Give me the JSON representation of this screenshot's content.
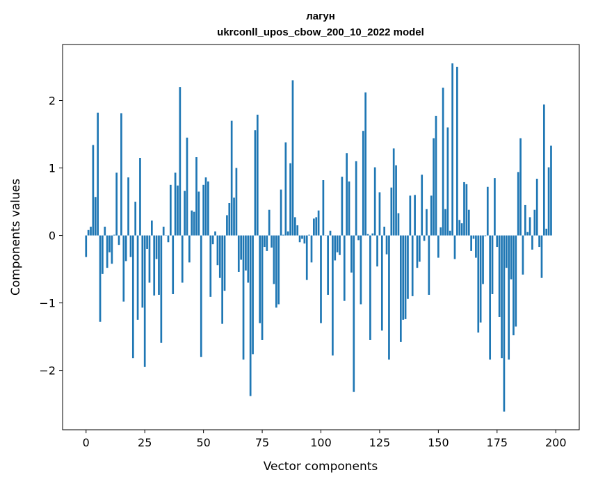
{
  "chart_data": {
    "type": "bar",
    "title": "лагун",
    "subtitle": "ukrconll_upos_cbow_200_10_2022 model",
    "xlabel": "Vector components",
    "ylabel": "Components values",
    "xlim": [
      -10,
      210
    ],
    "ylim": [
      -2.88,
      2.83
    ],
    "xticks": [
      0,
      25,
      50,
      75,
      100,
      125,
      150,
      175,
      200
    ],
    "yticks": [
      -2,
      -1,
      0,
      1,
      2
    ],
    "ytick_labels": [
      "−2",
      "−1",
      "0",
      "1",
      "2"
    ],
    "color": "#1f77b4",
    "grid": false,
    "values": [
      -0.32,
      0.08,
      0.13,
      1.34,
      0.57,
      1.82,
      -1.28,
      -0.57,
      0.13,
      -0.48,
      -0.25,
      -0.42,
      0.01,
      0.93,
      -0.14,
      1.81,
      -0.98,
      -0.38,
      0.86,
      -0.32,
      -1.82,
      0.5,
      -1.25,
      1.15,
      -1.07,
      -1.95,
      -0.2,
      -0.7,
      0.22,
      -0.89,
      -0.35,
      -0.88,
      -1.59,
      0.13,
      0.0,
      -0.1,
      0.75,
      -0.87,
      0.93,
      0.74,
      2.2,
      -0.7,
      0.66,
      1.45,
      -0.4,
      0.37,
      0.35,
      1.16,
      0.65,
      -1.8,
      0.75,
      0.86,
      0.8,
      -0.91,
      -0.13,
      0.06,
      -0.44,
      -0.63,
      -1.31,
      -0.82,
      0.3,
      0.48,
      1.7,
      0.56,
      1.0,
      -0.54,
      -0.36,
      -1.84,
      -0.52,
      -0.7,
      -2.38,
      -1.76,
      1.56,
      1.79,
      -1.3,
      -1.55,
      -0.17,
      -0.23,
      0.38,
      -0.18,
      -0.72,
      -1.07,
      -1.02,
      0.68,
      0.01,
      1.38,
      0.06,
      1.07,
      2.3,
      0.27,
      0.15,
      -0.1,
      -0.05,
      -0.12,
      -0.66,
      0.01,
      -0.4,
      0.25,
      0.27,
      0.37,
      -1.3,
      0.82,
      0.0,
      -0.88,
      0.07,
      -1.78,
      -0.37,
      -0.25,
      -0.29,
      0.87,
      -0.97,
      1.22,
      0.8,
      -0.55,
      -2.32,
      1.1,
      -0.07,
      -1.02,
      1.55,
      2.12,
      0.02,
      -1.55,
      0.03,
      1.01,
      -0.46,
      0.64,
      -1.41,
      0.13,
      -0.28,
      -1.84,
      0.71,
      1.29,
      1.04,
      0.33,
      -1.58,
      -1.25,
      -1.24,
      -0.94,
      0.59,
      -0.9,
      0.6,
      -0.48,
      -0.39,
      0.9,
      -0.08,
      0.39,
      -0.88,
      0.59,
      1.44,
      1.77,
      -0.33,
      0.12,
      2.19,
      0.39,
      1.6,
      0.07,
      2.55,
      -0.35,
      2.5,
      0.23,
      0.18,
      0.79,
      0.76,
      0.38,
      -0.23,
      -0.05,
      -0.33,
      -1.44,
      -1.29,
      -0.72,
      -0.01,
      0.72,
      -1.84,
      -0.87,
      0.85,
      -0.17,
      -1.21,
      -1.82,
      -2.61,
      -0.48,
      -1.84,
      -0.65,
      -1.48,
      -1.35,
      0.94,
      1.44,
      -0.58,
      0.45,
      0.05,
      0.27,
      -0.21,
      0.38,
      0.84,
      -0.17,
      -0.63,
      1.94,
      0.1,
      1.01,
      1.33
    ]
  }
}
